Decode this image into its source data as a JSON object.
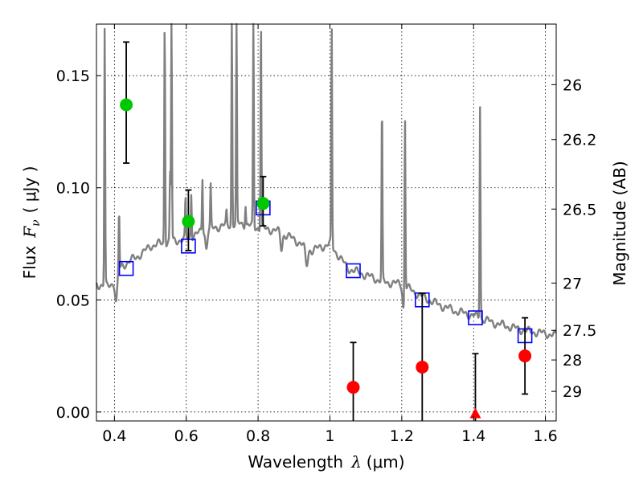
{
  "chart_data": {
    "type": "scatter",
    "xlabel_prefix": "Wavelength",
    "xlabel_symbol": "λ",
    "xlabel_unit": "(μm)",
    "ylabel_prefix": "Flux",
    "ylabel_symbol": "F",
    "ylabel_sub": "ν",
    "ylabel_unit": "( μJy )",
    "y2label": "Magnitude (AB)",
    "xlim": [
      0.35,
      1.63
    ],
    "ylim": [
      -0.004,
      0.173
    ],
    "grid": true,
    "x_ticks": [
      {
        "value": 0.4,
        "label": "0.4"
      },
      {
        "value": 0.6,
        "label": "0.6"
      },
      {
        "value": 0.8,
        "label": "0.8"
      },
      {
        "value": 1.0,
        "label": "1"
      },
      {
        "value": 1.2,
        "label": "1.2"
      },
      {
        "value": 1.4,
        "label": "1.4"
      },
      {
        "value": 1.6,
        "label": "1.6"
      }
    ],
    "y_ticks": [
      {
        "value": 0.0,
        "label": "0.00"
      },
      {
        "value": 0.05,
        "label": "0.05"
      },
      {
        "value": 0.1,
        "label": "0.10"
      },
      {
        "value": 0.15,
        "label": "0.15"
      }
    ],
    "y2_ticks": [
      {
        "flux": 0.146,
        "label": "26"
      },
      {
        "flux": 0.1215,
        "label": "26.2"
      },
      {
        "flux": 0.0905,
        "label": "26.5"
      },
      {
        "flux": 0.0575,
        "label": "27"
      },
      {
        "flux": 0.0364,
        "label": "27.5"
      },
      {
        "flux": 0.0232,
        "label": "28"
      },
      {
        "flux": 0.0092,
        "label": "29"
      }
    ],
    "series": [
      {
        "kind": "model_spectrum",
        "color": "#808080",
        "continuum": [
          [
            0.35,
            0.057
          ],
          [
            0.38,
            0.056
          ],
          [
            0.4,
            0.058
          ],
          [
            0.42,
            0.065
          ],
          [
            0.45,
            0.068
          ],
          [
            0.48,
            0.071
          ],
          [
            0.5,
            0.074
          ],
          [
            0.55,
            0.076
          ],
          [
            0.6,
            0.077
          ],
          [
            0.65,
            0.081
          ],
          [
            0.7,
            0.083
          ],
          [
            0.75,
            0.084
          ],
          [
            0.78,
            0.083
          ],
          [
            0.8,
            0.082
          ],
          [
            0.85,
            0.081
          ],
          [
            0.9,
            0.077
          ],
          [
            0.95,
            0.072
          ],
          [
            1.0,
            0.075
          ],
          [
            1.05,
            0.064
          ],
          [
            1.1,
            0.061
          ],
          [
            1.15,
            0.058
          ],
          [
            1.2,
            0.057
          ],
          [
            1.25,
            0.052
          ],
          [
            1.3,
            0.048
          ],
          [
            1.35,
            0.045
          ],
          [
            1.4,
            0.043
          ],
          [
            1.45,
            0.04
          ],
          [
            1.5,
            0.038
          ],
          [
            1.55,
            0.036
          ],
          [
            1.6,
            0.035
          ],
          [
            1.63,
            0.034
          ]
        ],
        "absorption_lines": [
          {
            "x": 0.405,
            "depth": 0.011,
            "width": 0.004
          },
          {
            "x": 0.656,
            "depth": 0.008,
            "width": 0.004
          },
          {
            "x": 0.865,
            "depth": 0.007,
            "width": 0.004
          },
          {
            "x": 0.935,
            "depth": 0.008,
            "width": 0.005
          },
          {
            "x": 1.205,
            "depth": 0.01,
            "width": 0.004
          }
        ],
        "emission_lines": [
          {
            "x": 0.373,
            "peak": 0.172
          },
          {
            "x": 0.413,
            "peak": 0.09
          },
          {
            "x": 0.5,
            "peak": 0.074
          },
          {
            "x": 0.54,
            "peak": 0.175
          },
          {
            "x": 0.555,
            "peak": 0.106
          },
          {
            "x": 0.559,
            "peak": 0.175
          },
          {
            "x": 0.598,
            "peak": 0.095
          },
          {
            "x": 0.614,
            "peak": 0.098
          },
          {
            "x": 0.645,
            "peak": 0.105
          },
          {
            "x": 0.668,
            "peak": 0.1
          },
          {
            "x": 0.712,
            "peak": 0.089
          },
          {
            "x": 0.727,
            "peak": 0.175
          },
          {
            "x": 0.74,
            "peak": 0.175
          },
          {
            "x": 0.765,
            "peak": 0.093
          },
          {
            "x": 0.787,
            "peak": 0.175
          },
          {
            "x": 0.808,
            "peak": 0.175
          },
          {
            "x": 1.005,
            "peak": 0.171
          },
          {
            "x": 1.145,
            "peak": 0.137
          },
          {
            "x": 1.209,
            "peak": 0.135
          },
          {
            "x": 1.418,
            "peak": 0.137
          }
        ]
      },
      {
        "kind": "model_photometry",
        "marker": "open-square",
        "color": "#0000ff",
        "points": [
          {
            "x": 0.433,
            "y": 0.064
          },
          {
            "x": 0.606,
            "y": 0.074
          },
          {
            "x": 0.814,
            "y": 0.091
          },
          {
            "x": 1.065,
            "y": 0.063
          },
          {
            "x": 1.257,
            "y": 0.05
          },
          {
            "x": 1.405,
            "y": 0.042
          },
          {
            "x": 1.543,
            "y": 0.034
          }
        ]
      },
      {
        "kind": "detections",
        "marker": "filled-circle",
        "color": "#00c800",
        "points": [
          {
            "x": 0.433,
            "y": 0.137,
            "ylo": 0.111,
            "yhi": 0.165
          },
          {
            "x": 0.606,
            "y": 0.085,
            "ylo": 0.072,
            "yhi": 0.099
          },
          {
            "x": 0.814,
            "y": 0.093,
            "ylo": 0.083,
            "yhi": 0.105
          }
        ]
      },
      {
        "kind": "low_significance",
        "marker": "filled-circle",
        "color": "#ff0000",
        "points": [
          {
            "x": 1.065,
            "y": 0.011,
            "ylo": -0.004,
            "yhi": 0.031
          },
          {
            "x": 1.257,
            "y": 0.02,
            "ylo": -0.004,
            "yhi": 0.053
          },
          {
            "x": 1.543,
            "y": 0.025,
            "ylo": 0.008,
            "yhi": 0.042
          }
        ]
      },
      {
        "kind": "upper_limit",
        "marker": "filled-triangle",
        "color": "#ff0000",
        "points": [
          {
            "x": 1.405,
            "y": -0.001,
            "ylo": -0.004,
            "yhi": 0.026
          }
        ]
      }
    ]
  }
}
